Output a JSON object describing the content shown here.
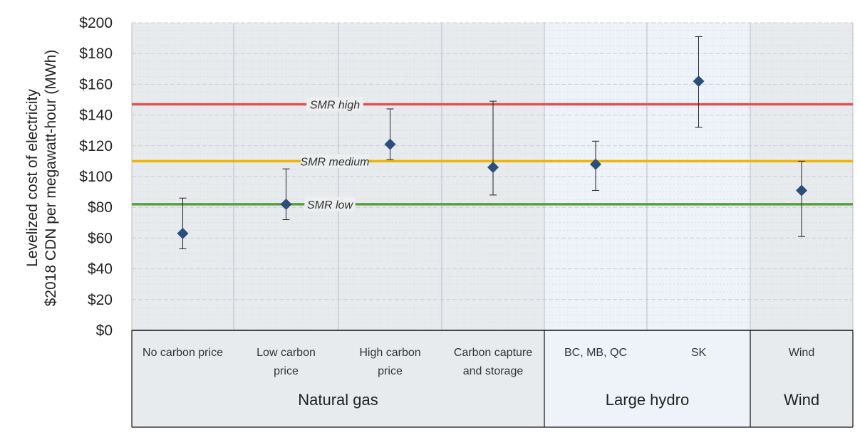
{
  "chart_data": {
    "type": "scatter",
    "ylabel": [
      "Levelized cost of electricity",
      "$2018 CDN per megawatt-hour (MWh)"
    ],
    "ylim": [
      0,
      200
    ],
    "yticks": [
      "$0",
      "$20",
      "$40",
      "$60",
      "$80",
      "$100",
      "$120",
      "$140",
      "$160",
      "$180",
      "$200"
    ],
    "grid": true,
    "categories": [
      "No carbon price",
      "Low carbon price",
      "High carbon price",
      "Carbon capture and storage",
      "BC, MB, QC",
      "SK",
      "Wind"
    ],
    "category_lines": [
      [
        "No carbon price"
      ],
      [
        "Low carbon",
        "price"
      ],
      [
        "High carbon",
        "price"
      ],
      [
        "Carbon capture",
        "and storage"
      ],
      [
        "BC, MB, QC"
      ],
      [
        "SK"
      ],
      [
        "Wind"
      ]
    ],
    "groups": [
      {
        "label": "Natural gas",
        "categories": 4
      },
      {
        "label": "Large hydro",
        "categories": 2
      },
      {
        "label": "Wind",
        "categories": 1
      }
    ],
    "points": [
      {
        "category": "No carbon price",
        "value": 63,
        "low": 53,
        "high": 86
      },
      {
        "category": "Low carbon price",
        "value": 82,
        "low": 72,
        "high": 105
      },
      {
        "category": "High carbon price",
        "value": 121,
        "low": 111,
        "high": 144
      },
      {
        "category": "Carbon capture and storage",
        "value": 106,
        "low": 88,
        "high": 149
      },
      {
        "category": "BC, MB, QC",
        "value": 108,
        "low": 91,
        "high": 123
      },
      {
        "category": "SK",
        "value": 162,
        "low": 132,
        "high": 191
      },
      {
        "category": "Wind",
        "value": 91,
        "low": 61,
        "high": 110
      }
    ],
    "reference_lines": [
      {
        "label": "SMR high",
        "value": 147,
        "color": "#e05252"
      },
      {
        "label": "SMR medium",
        "value": 110,
        "color": "#f0b400"
      },
      {
        "label": "SMR low",
        "value": 82,
        "color": "#5a9e3c"
      }
    ],
    "marker_color": "#2b4f7a",
    "group_backgrounds": [
      "#e8ebee",
      "#eef3fa",
      "#e8ebee"
    ]
  }
}
